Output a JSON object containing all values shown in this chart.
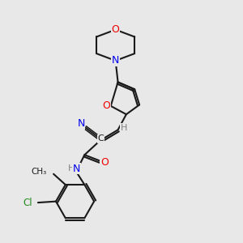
{
  "bg_color": "#e8e8e8",
  "bond_color": "#1a1a1a",
  "N_color": "#0000ee",
  "O_color": "#ee0000",
  "Cl_color": "#228b22",
  "H_color": "#808080",
  "line_width": 1.5,
  "figsize": [
    3.0,
    3.0
  ],
  "dpi": 100,
  "xlim": [
    0,
    10
  ],
  "ylim": [
    0,
    10
  ]
}
